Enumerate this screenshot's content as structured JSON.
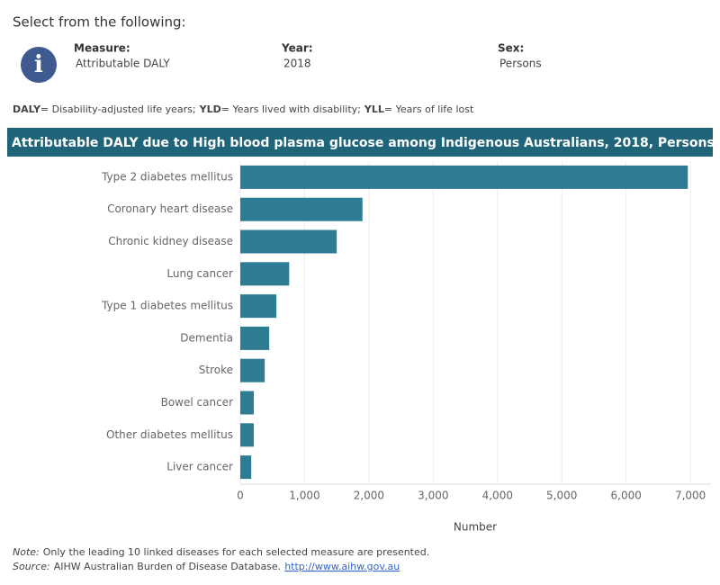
{
  "header": {
    "prompt": "Select from the following:",
    "filters": [
      {
        "label": "Measure:",
        "value": "Attributable DALY"
      },
      {
        "label": "Year:",
        "value": "2018"
      },
      {
        "label": "Sex:",
        "value": "Persons"
      }
    ],
    "definitions": [
      {
        "term": "DALY",
        "text": "= Disability-adjusted life years;"
      },
      {
        "term": "YLD",
        "text": "= Years lived with disability;"
      },
      {
        "term": "YLL",
        "text": "= Years of life lost"
      }
    ]
  },
  "chart_data": {
    "type": "bar",
    "orientation": "horizontal",
    "title": "Attributable DALY due to High blood plasma glucose among Indigenous Australians, 2018, Persons",
    "categories": [
      "Type 2 diabetes mellitus",
      "Coronary heart disease",
      "Chronic kidney disease",
      "Lung cancer",
      "Type 1 diabetes mellitus",
      "Dementia",
      "Stroke",
      "Bowel cancer",
      "Other diabetes mellitus",
      "Liver cancer"
    ],
    "values": [
      6960,
      1900,
      1500,
      760,
      560,
      450,
      380,
      210,
      210,
      170
    ],
    "color": "#2d7c94",
    "xlim": [
      0,
      7320
    ],
    "xticks": [
      0,
      {
        "value": 1000,
        "label": "1,000"
      },
      {
        "value": 2000,
        "label": "2,000"
      },
      {
        "value": 3000,
        "label": "3,000"
      },
      {
        "value": 4000,
        "label": "4,000"
      },
      {
        "value": 5000,
        "label": "5,000"
      },
      {
        "value": 6000,
        "label": "6,000"
      },
      {
        "value": 7000,
        "label": "7,000"
      }
    ],
    "xlabel": "Number",
    "grid": true
  },
  "footer": {
    "note_label": "Note:",
    "note": "Only the leading 10 linked diseases for each selected measure are presented.",
    "source_label": "Source:",
    "source": "AIHW Australian Burden of Disease Database.",
    "link": "http://www.aihw.gov.au"
  }
}
